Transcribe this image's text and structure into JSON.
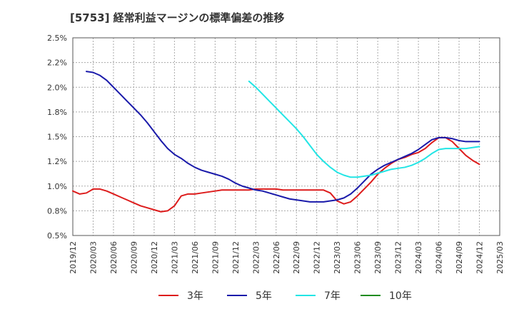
{
  "chart_data": {
    "type": "line",
    "title": "[5753]  経常利益マージンの標準偏差の推移",
    "xlabel": "",
    "ylabel": "",
    "ylim": [
      0.5,
      2.5
    ],
    "y_ticks": [
      "0.5%",
      "0.8%",
      "1.0%",
      "1.2%",
      "1.5%",
      "1.8%",
      "2.0%",
      "2.2%",
      "2.5%"
    ],
    "x_ticks": [
      "2019/12",
      "2020/03",
      "2020/06",
      "2020/09",
      "2020/12",
      "2021/03",
      "2021/06",
      "2021/09",
      "2021/12",
      "2022/03",
      "2022/06",
      "2022/09",
      "2022/12",
      "2023/03",
      "2023/06",
      "2023/09",
      "2023/12",
      "2024/03",
      "2024/06",
      "2024/09",
      "2024/12",
      "2025/03"
    ],
    "grid": true,
    "legend_position": "bottom",
    "series": [
      {
        "name": "3年",
        "color": "#dd1c1c",
        "points": [
          [
            "2019/12",
            0.95
          ],
          [
            "2020/01",
            0.92
          ],
          [
            "2020/02",
            0.93
          ],
          [
            "2020/03",
            0.97
          ],
          [
            "2020/04",
            0.97
          ],
          [
            "2020/05",
            0.95
          ],
          [
            "2020/06",
            0.92
          ],
          [
            "2020/07",
            0.89
          ],
          [
            "2020/08",
            0.86
          ],
          [
            "2020/09",
            0.83
          ],
          [
            "2020/10",
            0.8
          ],
          [
            "2020/11",
            0.78
          ],
          [
            "2020/12",
            0.76
          ],
          [
            "2021/01",
            0.74
          ],
          [
            "2021/02",
            0.75
          ],
          [
            "2021/03",
            0.8
          ],
          [
            "2021/04",
            0.9
          ],
          [
            "2021/05",
            0.92
          ],
          [
            "2021/06",
            0.92
          ],
          [
            "2021/07",
            0.93
          ],
          [
            "2021/08",
            0.94
          ],
          [
            "2021/09",
            0.95
          ],
          [
            "2021/10",
            0.96
          ],
          [
            "2021/11",
            0.96
          ],
          [
            "2021/12",
            0.96
          ],
          [
            "2022/01",
            0.96
          ],
          [
            "2022/02",
            0.96
          ],
          [
            "2022/03",
            0.97
          ],
          [
            "2022/04",
            0.97
          ],
          [
            "2022/05",
            0.97
          ],
          [
            "2022/06",
            0.97
          ],
          [
            "2022/07",
            0.96
          ],
          [
            "2022/08",
            0.96
          ],
          [
            "2022/09",
            0.96
          ],
          [
            "2022/10",
            0.96
          ],
          [
            "2022/11",
            0.96
          ],
          [
            "2022/12",
            0.96
          ],
          [
            "2023/01",
            0.96
          ],
          [
            "2023/02",
            0.93
          ],
          [
            "2023/03",
            0.85
          ],
          [
            "2023/04",
            0.82
          ],
          [
            "2023/05",
            0.84
          ],
          [
            "2023/06",
            0.9
          ],
          [
            "2023/07",
            0.97
          ],
          [
            "2023/08",
            1.04
          ],
          [
            "2023/09",
            1.12
          ],
          [
            "2023/10",
            1.18
          ],
          [
            "2023/11",
            1.23
          ],
          [
            "2023/12",
            1.27
          ],
          [
            "2024/01",
            1.29
          ],
          [
            "2024/02",
            1.32
          ],
          [
            "2024/03",
            1.34
          ],
          [
            "2024/04",
            1.38
          ],
          [
            "2024/05",
            1.44
          ],
          [
            "2024/06",
            1.49
          ],
          [
            "2024/07",
            1.49
          ],
          [
            "2024/08",
            1.45
          ],
          [
            "2024/09",
            1.38
          ],
          [
            "2024/10",
            1.31
          ],
          [
            "2024/11",
            1.26
          ],
          [
            "2024/12",
            1.22
          ]
        ]
      },
      {
        "name": "5年",
        "color": "#1a1aaa",
        "points": [
          [
            "2020/02",
            2.16
          ],
          [
            "2020/03",
            2.15
          ],
          [
            "2020/04",
            2.12
          ],
          [
            "2020/05",
            2.07
          ],
          [
            "2020/06",
            2.0
          ],
          [
            "2020/07",
            1.93
          ],
          [
            "2020/08",
            1.86
          ],
          [
            "2020/09",
            1.79
          ],
          [
            "2020/10",
            1.72
          ],
          [
            "2020/11",
            1.64
          ],
          [
            "2020/12",
            1.55
          ],
          [
            "2021/01",
            1.46
          ],
          [
            "2021/02",
            1.38
          ],
          [
            "2021/03",
            1.32
          ],
          [
            "2021/04",
            1.28
          ],
          [
            "2021/05",
            1.23
          ],
          [
            "2021/06",
            1.19
          ],
          [
            "2021/07",
            1.16
          ],
          [
            "2021/08",
            1.14
          ],
          [
            "2021/09",
            1.12
          ],
          [
            "2021/10",
            1.1
          ],
          [
            "2021/11",
            1.07
          ],
          [
            "2021/12",
            1.03
          ],
          [
            "2022/01",
            1.0
          ],
          [
            "2022/02",
            0.98
          ],
          [
            "2022/03",
            0.96
          ],
          [
            "2022/04",
            0.95
          ],
          [
            "2022/05",
            0.93
          ],
          [
            "2022/06",
            0.91
          ],
          [
            "2022/07",
            0.89
          ],
          [
            "2022/08",
            0.87
          ],
          [
            "2022/09",
            0.86
          ],
          [
            "2022/10",
            0.85
          ],
          [
            "2022/11",
            0.84
          ],
          [
            "2022/12",
            0.84
          ],
          [
            "2023/01",
            0.84
          ],
          [
            "2023/02",
            0.85
          ],
          [
            "2023/03",
            0.86
          ],
          [
            "2023/04",
            0.88
          ],
          [
            "2023/05",
            0.92
          ],
          [
            "2023/06",
            0.98
          ],
          [
            "2023/07",
            1.05
          ],
          [
            "2023/08",
            1.12
          ],
          [
            "2023/09",
            1.17
          ],
          [
            "2023/10",
            1.21
          ],
          [
            "2023/11",
            1.24
          ],
          [
            "2023/12",
            1.27
          ],
          [
            "2024/01",
            1.3
          ],
          [
            "2024/02",
            1.33
          ],
          [
            "2024/03",
            1.37
          ],
          [
            "2024/04",
            1.42
          ],
          [
            "2024/05",
            1.47
          ],
          [
            "2024/06",
            1.49
          ],
          [
            "2024/07",
            1.49
          ],
          [
            "2024/08",
            1.48
          ],
          [
            "2024/09",
            1.46
          ],
          [
            "2024/10",
            1.45
          ],
          [
            "2024/11",
            1.45
          ],
          [
            "2024/12",
            1.45
          ]
        ]
      },
      {
        "name": "7年",
        "color": "#22e5e5",
        "points": [
          [
            "2022/02",
            2.06
          ],
          [
            "2022/03",
            2.0
          ],
          [
            "2022/04",
            1.93
          ],
          [
            "2022/05",
            1.86
          ],
          [
            "2022/06",
            1.79
          ],
          [
            "2022/07",
            1.72
          ],
          [
            "2022/08",
            1.65
          ],
          [
            "2022/09",
            1.58
          ],
          [
            "2022/10",
            1.5
          ],
          [
            "2022/11",
            1.41
          ],
          [
            "2022/12",
            1.32
          ],
          [
            "2023/01",
            1.25
          ],
          [
            "2023/02",
            1.19
          ],
          [
            "2023/03",
            1.14
          ],
          [
            "2023/04",
            1.11
          ],
          [
            "2023/05",
            1.09
          ],
          [
            "2023/06",
            1.09
          ],
          [
            "2023/07",
            1.1
          ],
          [
            "2023/08",
            1.11
          ],
          [
            "2023/09",
            1.13
          ],
          [
            "2023/10",
            1.15
          ],
          [
            "2023/11",
            1.17
          ],
          [
            "2023/12",
            1.18
          ],
          [
            "2024/01",
            1.19
          ],
          [
            "2024/02",
            1.21
          ],
          [
            "2024/03",
            1.24
          ],
          [
            "2024/04",
            1.28
          ],
          [
            "2024/05",
            1.33
          ],
          [
            "2024/06",
            1.37
          ],
          [
            "2024/07",
            1.38
          ],
          [
            "2024/08",
            1.38
          ],
          [
            "2024/09",
            1.38
          ],
          [
            "2024/10",
            1.38
          ],
          [
            "2024/11",
            1.39
          ],
          [
            "2024/12",
            1.4
          ]
        ]
      },
      {
        "name": "10年",
        "color": "#1f8c1f",
        "points": []
      }
    ]
  }
}
